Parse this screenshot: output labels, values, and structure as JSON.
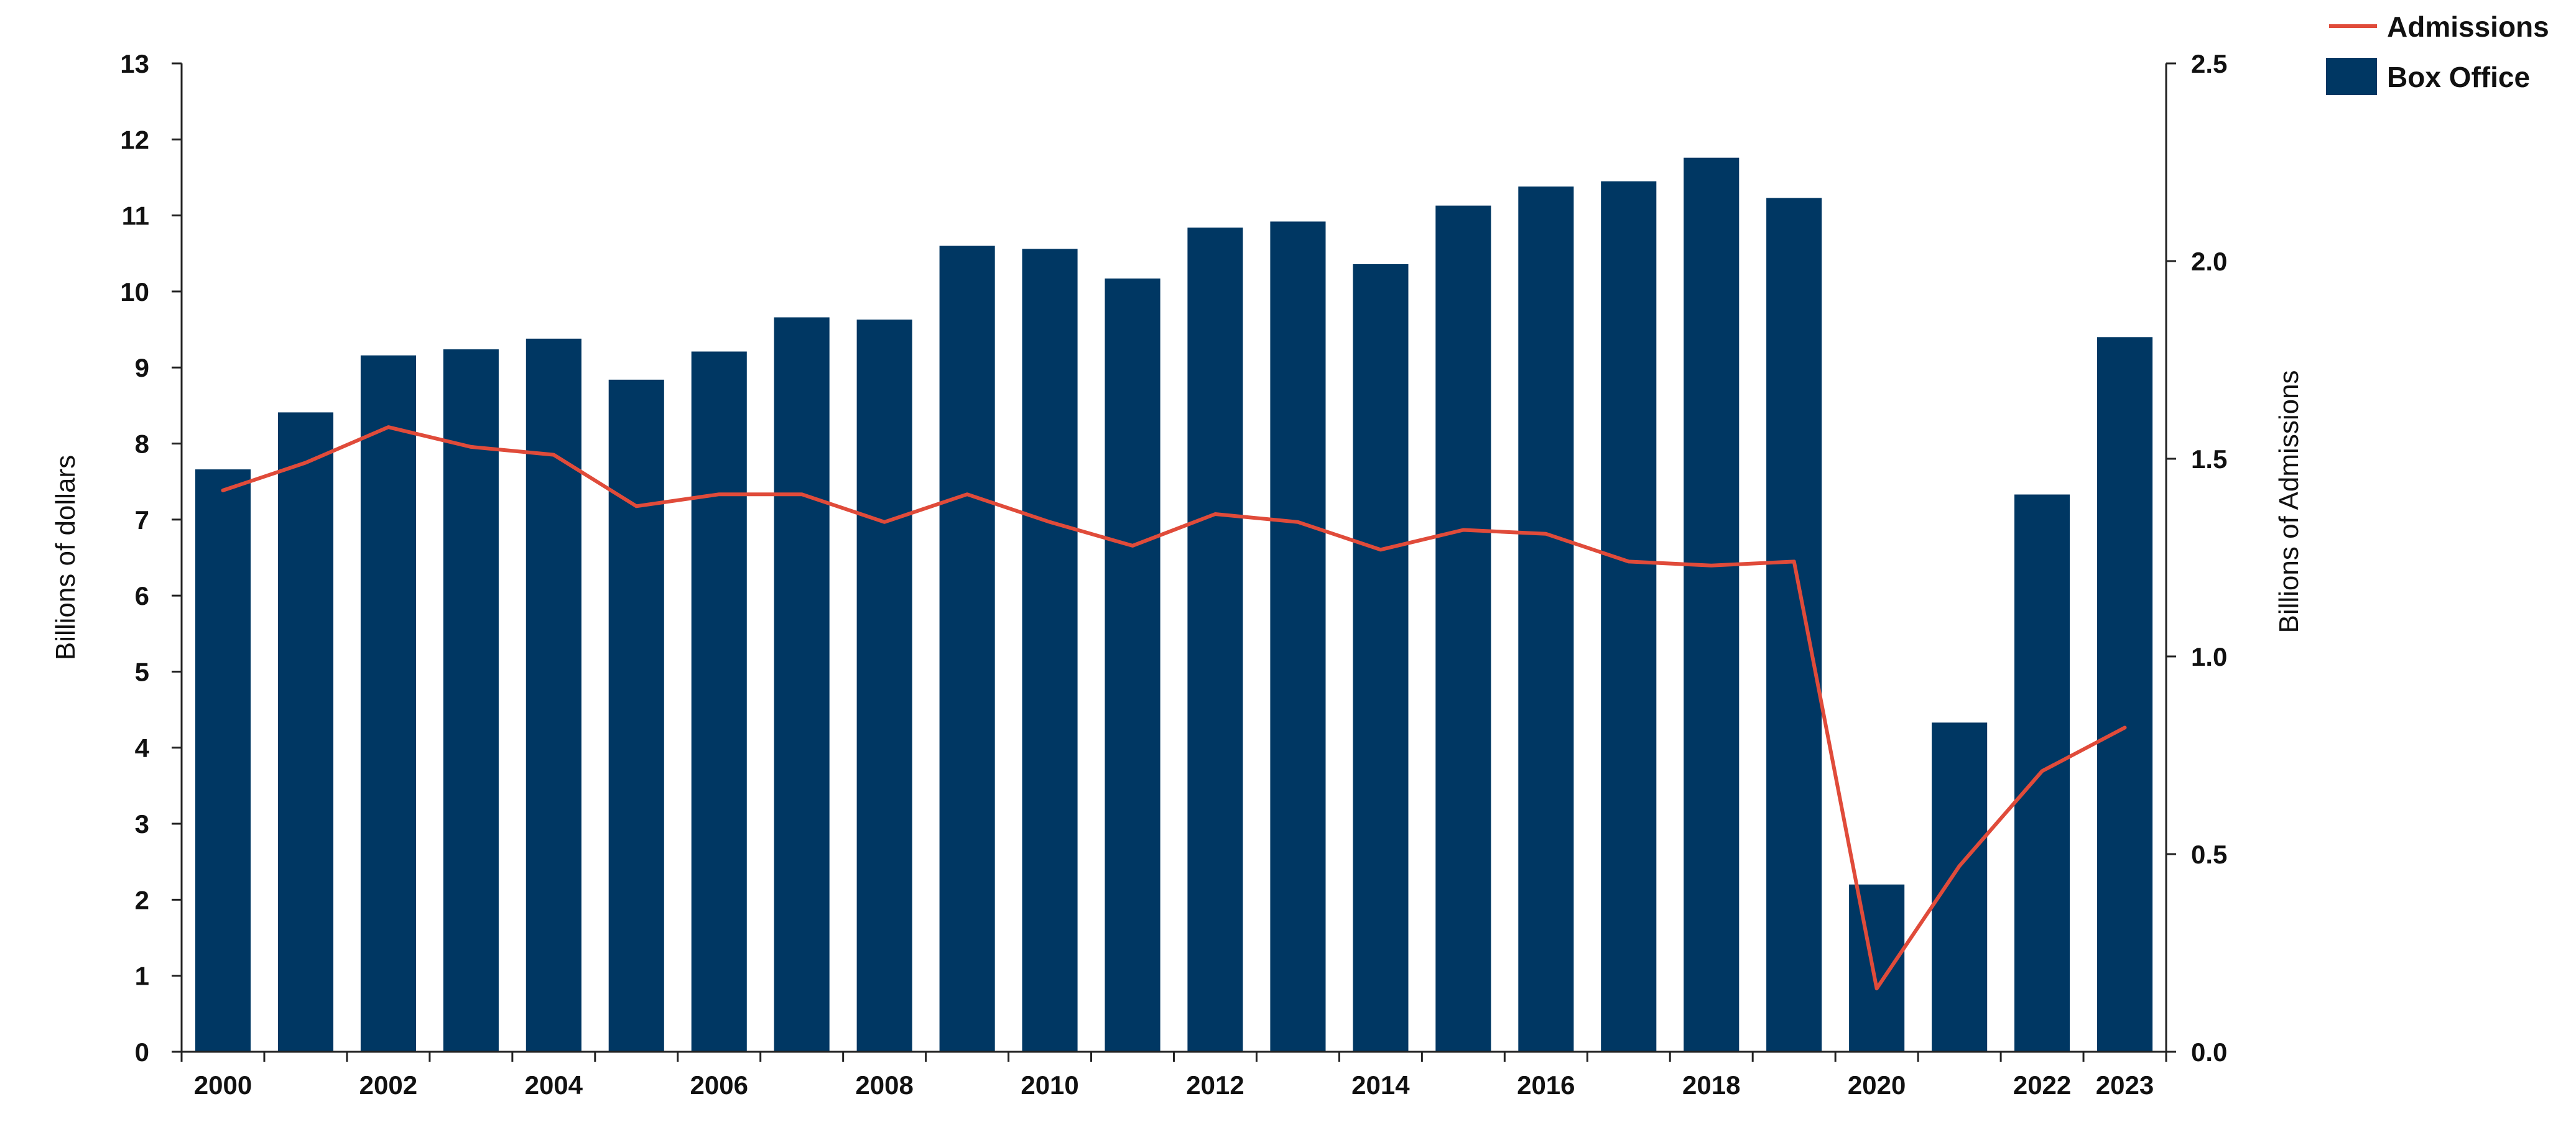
{
  "chart_data": {
    "type": "bar",
    "categories": [
      "2000",
      "2001",
      "2002",
      "2003",
      "2004",
      "2005",
      "2006",
      "2007",
      "2008",
      "2009",
      "2010",
      "2011",
      "2012",
      "2013",
      "2014",
      "2015",
      "2016",
      "2017",
      "2018",
      "2019",
      "2020",
      "2021",
      "2022",
      "2023"
    ],
    "x_tick_labels": [
      "2000",
      "2002",
      "2004",
      "2006",
      "2008",
      "2010",
      "2012",
      "2014",
      "2016",
      "2018",
      "2020",
      "2022",
      "2023"
    ],
    "series": [
      {
        "name": "Box Office",
        "type": "bar",
        "axis": "left",
        "color": "#003763",
        "values": [
          7.66,
          8.41,
          9.16,
          9.24,
          9.38,
          8.84,
          9.21,
          9.66,
          9.63,
          10.6,
          10.56,
          10.17,
          10.84,
          10.92,
          10.36,
          11.13,
          11.38,
          11.45,
          11.76,
          11.23,
          2.2,
          4.33,
          7.33,
          9.4
        ]
      },
      {
        "name": "Admissions",
        "type": "line",
        "axis": "right",
        "color": "#e04b3a",
        "values": [
          1.42,
          1.49,
          1.58,
          1.53,
          1.51,
          1.38,
          1.41,
          1.41,
          1.34,
          1.41,
          1.34,
          1.28,
          1.36,
          1.34,
          1.27,
          1.32,
          1.31,
          1.24,
          1.23,
          1.24,
          0.16,
          0.47,
          0.71,
          0.82
        ]
      }
    ],
    "ylabel": "Billions of dollars",
    "ylim": [
      0,
      13
    ],
    "y_ticks": [
      "0",
      "1",
      "2",
      "3",
      "4",
      "5",
      "6",
      "7",
      "8",
      "9",
      "10",
      "11",
      "12",
      "13"
    ],
    "y2label": "Billions of Admissions",
    "y2lim": [
      0,
      2.5
    ],
    "y2_ticks": [
      "0.0",
      "0.5",
      "1.0",
      "1.5",
      "2.0",
      "2.5"
    ],
    "grid": false,
    "legend": {
      "placement": "top-right",
      "entries": [
        {
          "label": "Admissions",
          "symbol": "line",
          "color": "#e04b3a"
        },
        {
          "label": "Box Office",
          "symbol": "box",
          "color": "#003763"
        }
      ]
    }
  }
}
